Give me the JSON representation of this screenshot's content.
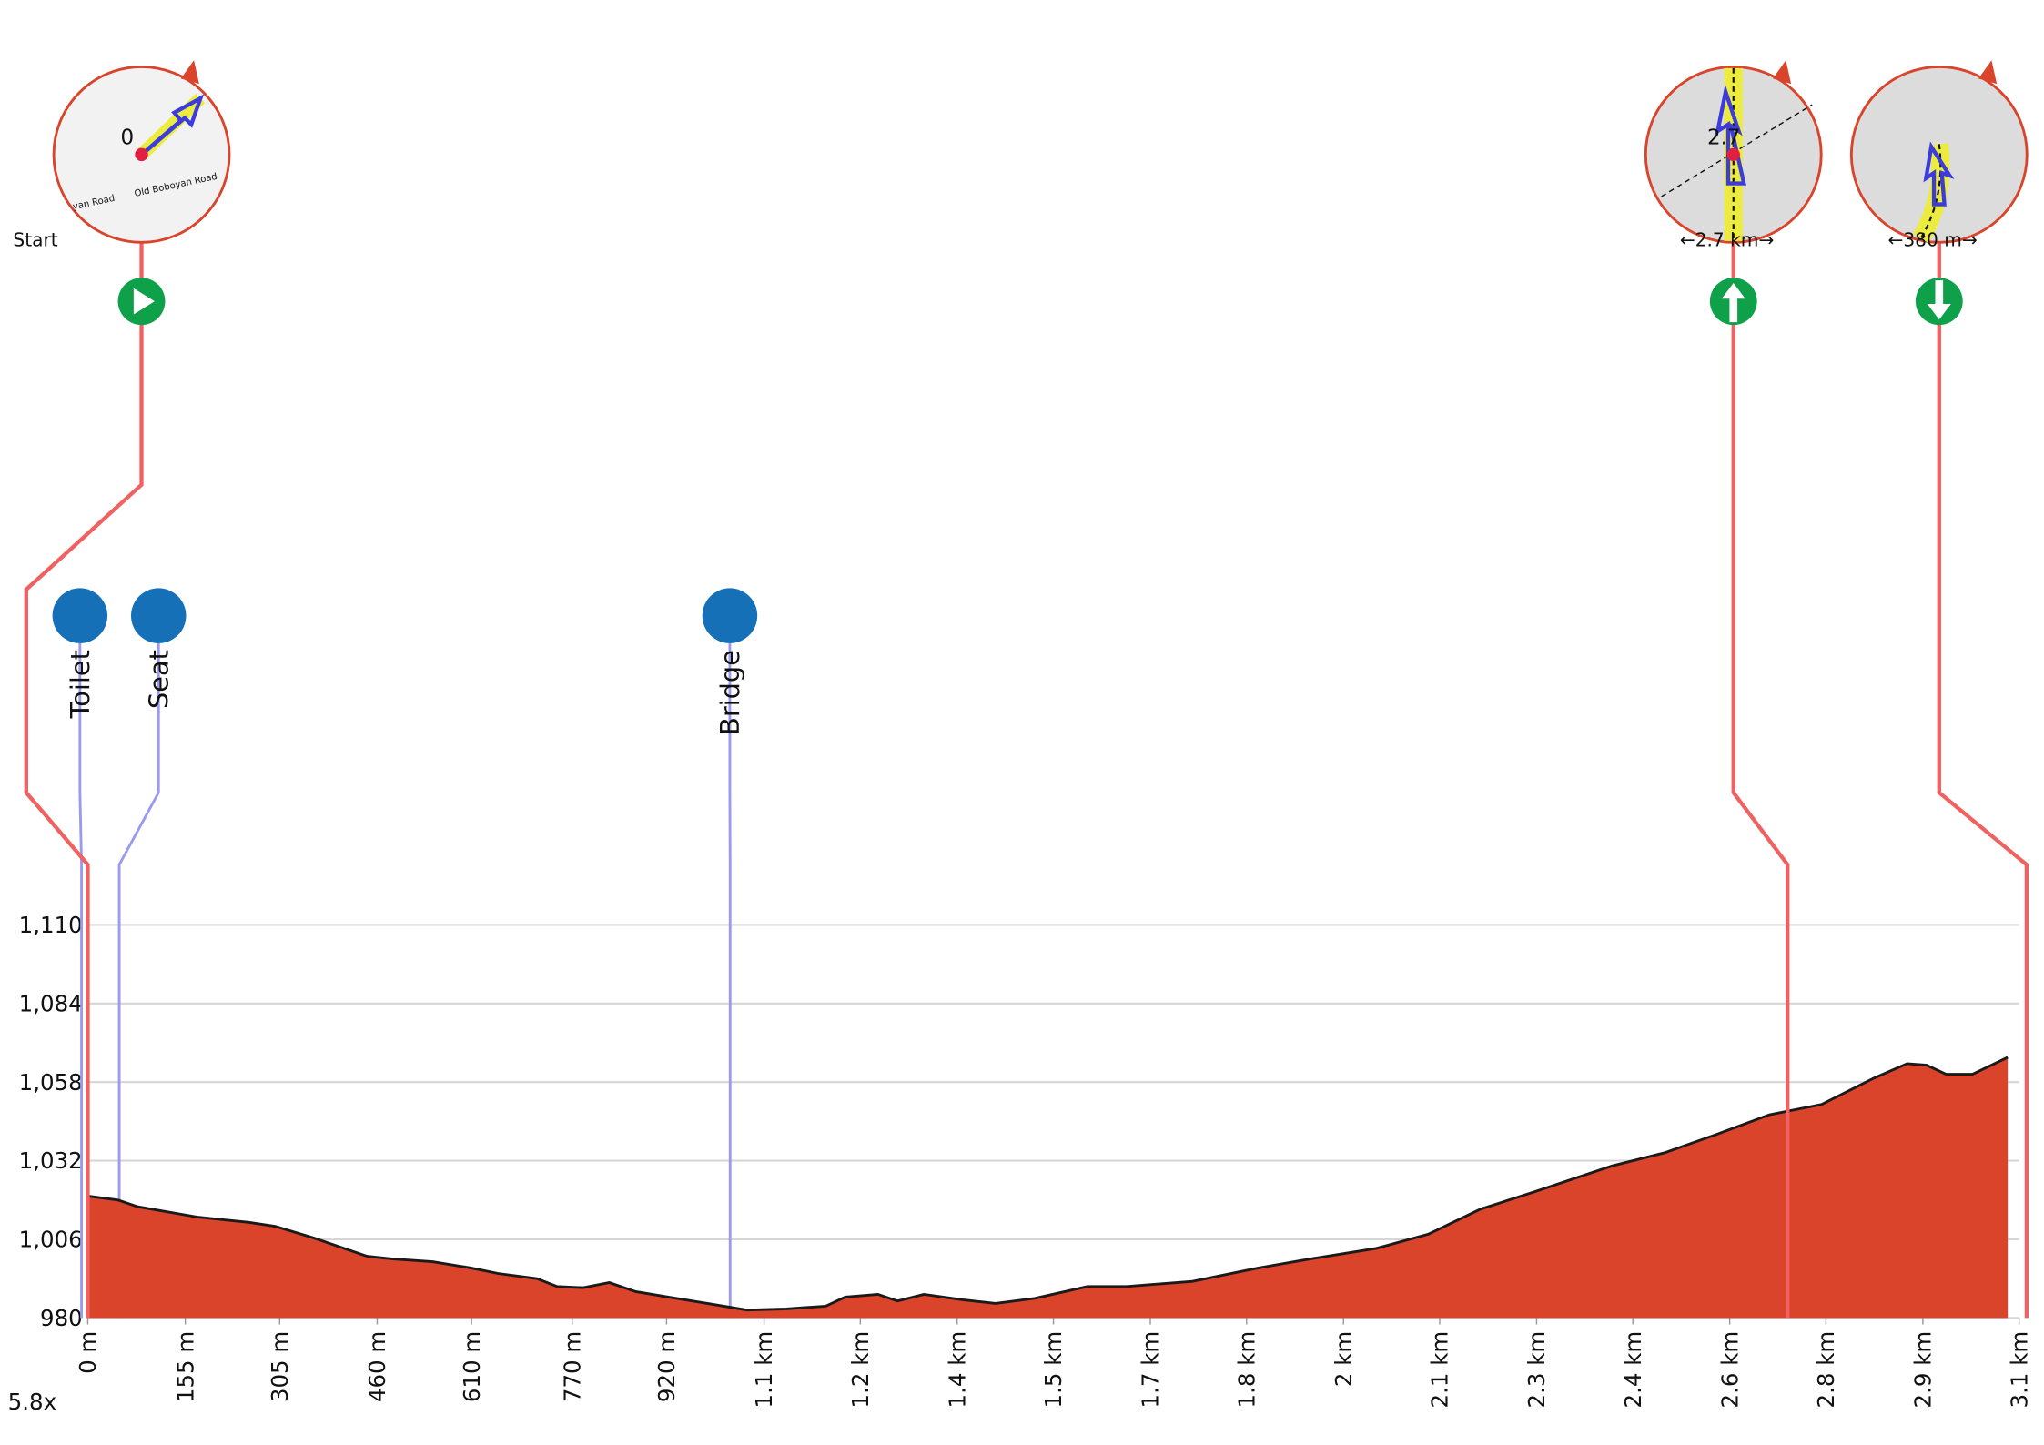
{
  "chart_data": {
    "type": "area",
    "color": "#d9442b",
    "line_color": "#1a1a1a",
    "grid": true,
    "zoom_label": "5.8x",
    "x": [
      0,
      48,
      79,
      173,
      256,
      298,
      360,
      444,
      485,
      548,
      610,
      652,
      714,
      746,
      787,
      829,
      871,
      923,
      985,
      1048,
      1110,
      1173,
      1204,
      1256,
      1287,
      1329,
      1391,
      1443,
      1506,
      1589,
      1652,
      1756,
      1860,
      1943,
      2048,
      2131,
      2214,
      2298,
      2423,
      2506,
      2589,
      2673,
      2756,
      2839,
      2892,
      2923,
      2954,
      2996,
      3052
    ],
    "values": [
      1020.3,
      1019,
      1016.8,
      1013.4,
      1011.6,
      1010.3,
      1006.4,
      1000.4,
      999.5,
      998.6,
      996.5,
      994.7,
      993,
      990.4,
      990,
      991.7,
      988.7,
      986.9,
      984.8,
      982.6,
      983,
      983.9,
      986.9,
      987.8,
      985.6,
      987.8,
      986,
      984.8,
      986.5,
      990.4,
      990.4,
      992.1,
      996.5,
      999.5,
      1003,
      1007.7,
      1016,
      1021.6,
      1030.3,
      1034.6,
      1040.7,
      1047.2,
      1050.6,
      1059.3,
      1064.1,
      1063.6,
      1060.6,
      1060.6,
      1066.2
    ],
    "xlim": [
      0,
      3070
    ],
    "ylim": [
      980,
      1110
    ],
    "yticks": [
      980,
      {
        "value": 1006,
        "label": "1,006"
      },
      {
        "value": 1032,
        "label": "1,032"
      },
      {
        "value": 1058,
        "label": "1,058"
      },
      {
        "value": 1084,
        "label": "1,084"
      },
      {
        "value": 1110,
        "label": "1,110"
      }
    ],
    "xticks": [
      {
        "value": 0,
        "label": "0 m"
      },
      {
        "value": 155,
        "label": "155 m"
      },
      {
        "value": 305,
        "label": "305 m"
      },
      {
        "value": 460,
        "label": "460 m"
      },
      {
        "value": 610,
        "label": "610 m"
      },
      {
        "value": 770,
        "label": "770 m"
      },
      {
        "value": 920,
        "label": "920 m"
      },
      {
        "value": 1075,
        "label": "1.1 km"
      },
      {
        "value": 1228,
        "label": "1.2 km"
      },
      {
        "value": 1382,
        "label": "1.4 km"
      },
      {
        "value": 1535,
        "label": "1.5 km"
      },
      {
        "value": 1689,
        "label": "1.7 km"
      },
      {
        "value": 1842,
        "label": "1.8 km"
      },
      {
        "value": 1996,
        "label": "2 km"
      },
      {
        "value": 2149,
        "label": "2.1 km"
      },
      {
        "value": 2303,
        "label": "2.3 km"
      },
      {
        "value": 2456,
        "label": "2.4 km"
      },
      {
        "value": 2610,
        "label": "2.6 km"
      },
      {
        "value": 2763,
        "label": "2.8 km"
      },
      {
        "value": 2917,
        "label": "2.9 km"
      },
      {
        "value": 3070,
        "label": "3.1 km"
      }
    ],
    "pois": [
      {
        "name": "Toilet",
        "x": -10
      },
      {
        "name": "Seat",
        "x": 50
      },
      {
        "name": "Bridge",
        "x": 1021
      }
    ],
    "markers": [
      {
        "label": "Start",
        "x": 0,
        "map_texts": [
          "0",
          "Old Boboyan Road",
          "yan Road"
        ]
      },
      {
        "label": "←2.7 km→",
        "x": 2702,
        "map_texts": [
          "2.7"
        ]
      },
      {
        "label": "←380 m→",
        "x": 3082
      }
    ]
  }
}
